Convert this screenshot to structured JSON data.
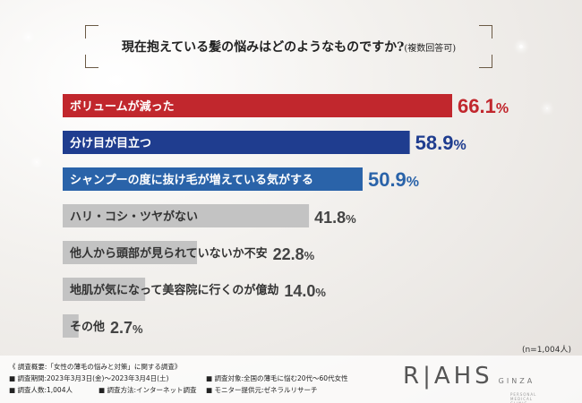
{
  "title": {
    "main": "現在抱えている髪の悩みはどのようなものですか?",
    "sub": "(複数回答可)"
  },
  "note": "(n=1,004人)",
  "chart_data": {
    "type": "bar",
    "title": "現在抱えている髪の悩みはどのようなものですか?(複数回答可)",
    "categories": [
      "ボリュームが減った",
      "分け目が目立つ",
      "シャンプーの度に抜け毛が増えている気がする",
      "ハリ・コシ・ツヤがない",
      "他人から頭部が見られていないか不安",
      "地肌が気になって美容院に行くのが億劫",
      "その他"
    ],
    "values": [
      66.1,
      58.9,
      50.9,
      41.8,
      22.8,
      14.0,
      2.7
    ],
    "value_labels": [
      "66.1",
      "58.9",
      "50.9",
      "41.8",
      "22.8",
      "14.0",
      "2.7"
    ],
    "unit": "%",
    "colors": [
      "#c1272d",
      "#1f3d8f",
      "#2a63a9",
      "#c3c3c3",
      "#c3c3c3",
      "#c3c3c3",
      "#c3c3c3"
    ],
    "label_colors": [
      "#c1272d",
      "#1f3d8f",
      "#2a63a9",
      "#444444",
      "#444444",
      "#444444",
      "#444444"
    ],
    "xlim": [
      0,
      66.1
    ]
  },
  "footer": {
    "heading": "《 調査概要:「女性の薄毛の悩みと対策」に関する調査》",
    "period": "■ 調査期間:2023年3月3日(金)〜2023年3月4日(土)",
    "target": "■ 調査対象:全国の薄毛に悩む20代〜60代女性",
    "count": "■ 調査人数:1,004人",
    "method": "■ 調査方法:インターネット調査",
    "provider": "■ モニター提供元:ゼネラルリサーチ"
  },
  "logo": {
    "brand": "R|AHS",
    "sub": "GINZA",
    "tagline": "PERSONAL MEDICAL CLINIC"
  }
}
